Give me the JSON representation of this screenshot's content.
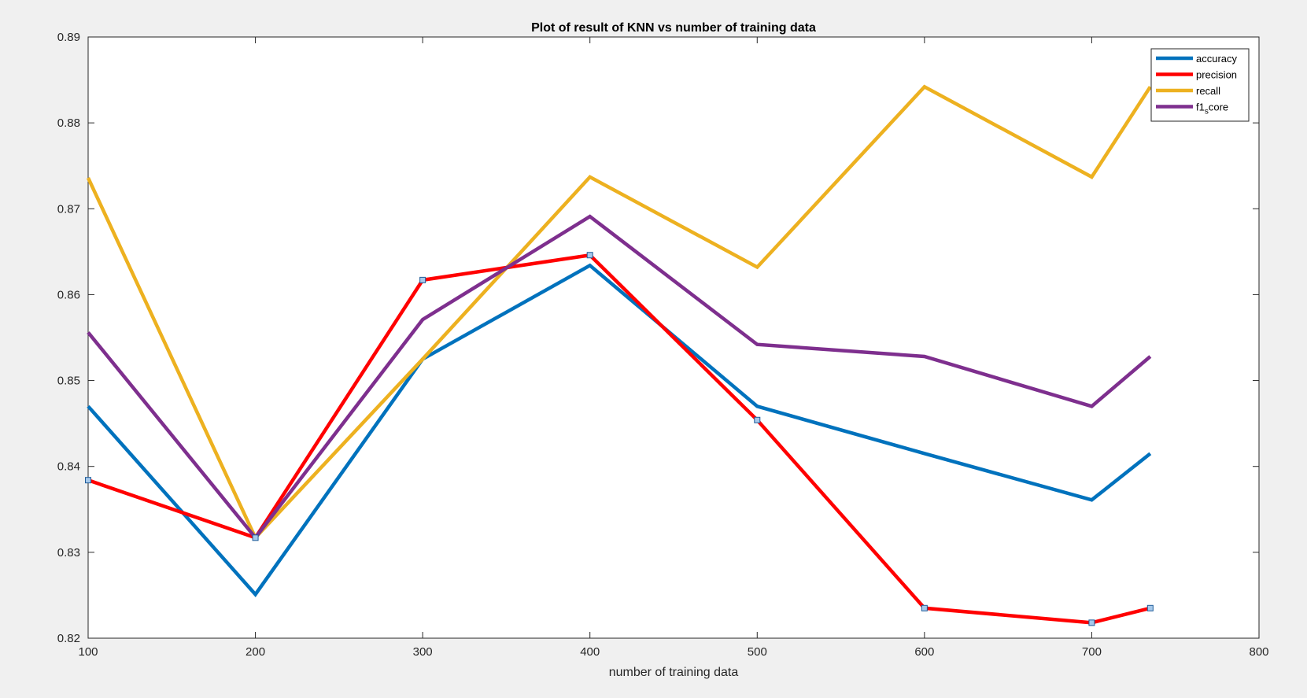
{
  "chart_data": {
    "type": "line",
    "title": "Plot of result of KNN  vs number of training data",
    "xlabel": "number of training data",
    "ylabel": "",
    "xlim": [
      100,
      800
    ],
    "ylim": [
      0.82,
      0.89
    ],
    "xticks": [
      100,
      200,
      300,
      400,
      500,
      600,
      700,
      800
    ],
    "yticks": [
      0.82,
      0.83,
      0.84,
      0.85,
      0.86,
      0.87,
      0.88,
      0.89
    ],
    "xtick_labels": [
      "100",
      "200",
      "300",
      "400",
      "500",
      "600",
      "700",
      "800"
    ],
    "ytick_labels": [
      "0.82",
      "0.83",
      "0.84",
      "0.85",
      "0.86",
      "0.87",
      "0.88",
      "0.89"
    ],
    "x": [
      100,
      200,
      300,
      400,
      500,
      600,
      700,
      735
    ],
    "grid": false,
    "legend_position": "top-right",
    "series": [
      {
        "name": "accuracy",
        "color": "#0072BD",
        "values": [
          0.847,
          0.8251,
          0.8525,
          0.8634,
          0.847,
          0.8415,
          0.8361,
          0.8415
        ],
        "markers": false
      },
      {
        "name": "precision",
        "color": "#FF0000",
        "values": [
          0.8384,
          0.8317,
          0.8617,
          0.8646,
          0.8454,
          0.8235,
          0.8218,
          0.8235
        ],
        "markers": true
      },
      {
        "name": "recall",
        "color": "#EDB120",
        "values": [
          0.8736,
          0.8317,
          0.8525,
          0.8737,
          0.8632,
          0.8842,
          0.8737,
          0.8842
        ],
        "markers": false
      },
      {
        "name": "f1_score",
        "legend_label_main": "f1",
        "legend_label_sub": "s",
        "legend_label_tail": "core",
        "color": "#7E2F8E",
        "values": [
          0.8556,
          0.8317,
          0.8571,
          0.8691,
          0.8542,
          0.8528,
          0.847,
          0.8528
        ],
        "markers": false
      }
    ],
    "marker_style": {
      "shape": "square",
      "fill": "#a6c8ea",
      "stroke": "#1f5c99"
    },
    "colors": {
      "background": "#f0f0f0",
      "plot_area": "#ffffff",
      "axes": "#262626"
    }
  }
}
